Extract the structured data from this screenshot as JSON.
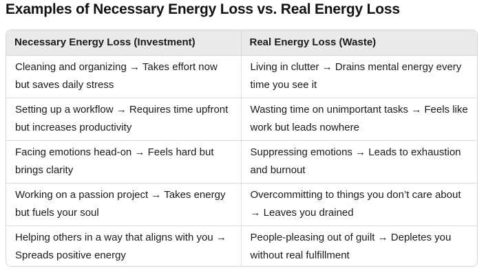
{
  "title": "Examples of Necessary Energy Loss vs. Real Energy Loss",
  "table": {
    "headers": [
      "Necessary Energy Loss (Investment)",
      "Real Energy Loss (Waste)"
    ],
    "rows": [
      [
        "Cleaning and organizing → Takes effort now but saves daily stress",
        "Living in clutter → Drains mental energy every time you see it"
      ],
      [
        "Setting up a workflow → Requires time upfront but increases productivity",
        "Wasting time on unimportant tasks → Feels like work but leads nowhere"
      ],
      [
        "Facing emotions head-on → Feels hard but brings clarity",
        "Suppressing emotions → Leads to exhaustion and burnout"
      ],
      [
        "Working on a passion project → Takes energy but fuels your soul",
        "Overcommitting to things you don’t care about → Leaves you drained"
      ],
      [
        "Helping others in a way that aligns with you → Spreads positive energy",
        "People-pleasing out of guilt → Depletes you without real fulfillment"
      ]
    ]
  }
}
